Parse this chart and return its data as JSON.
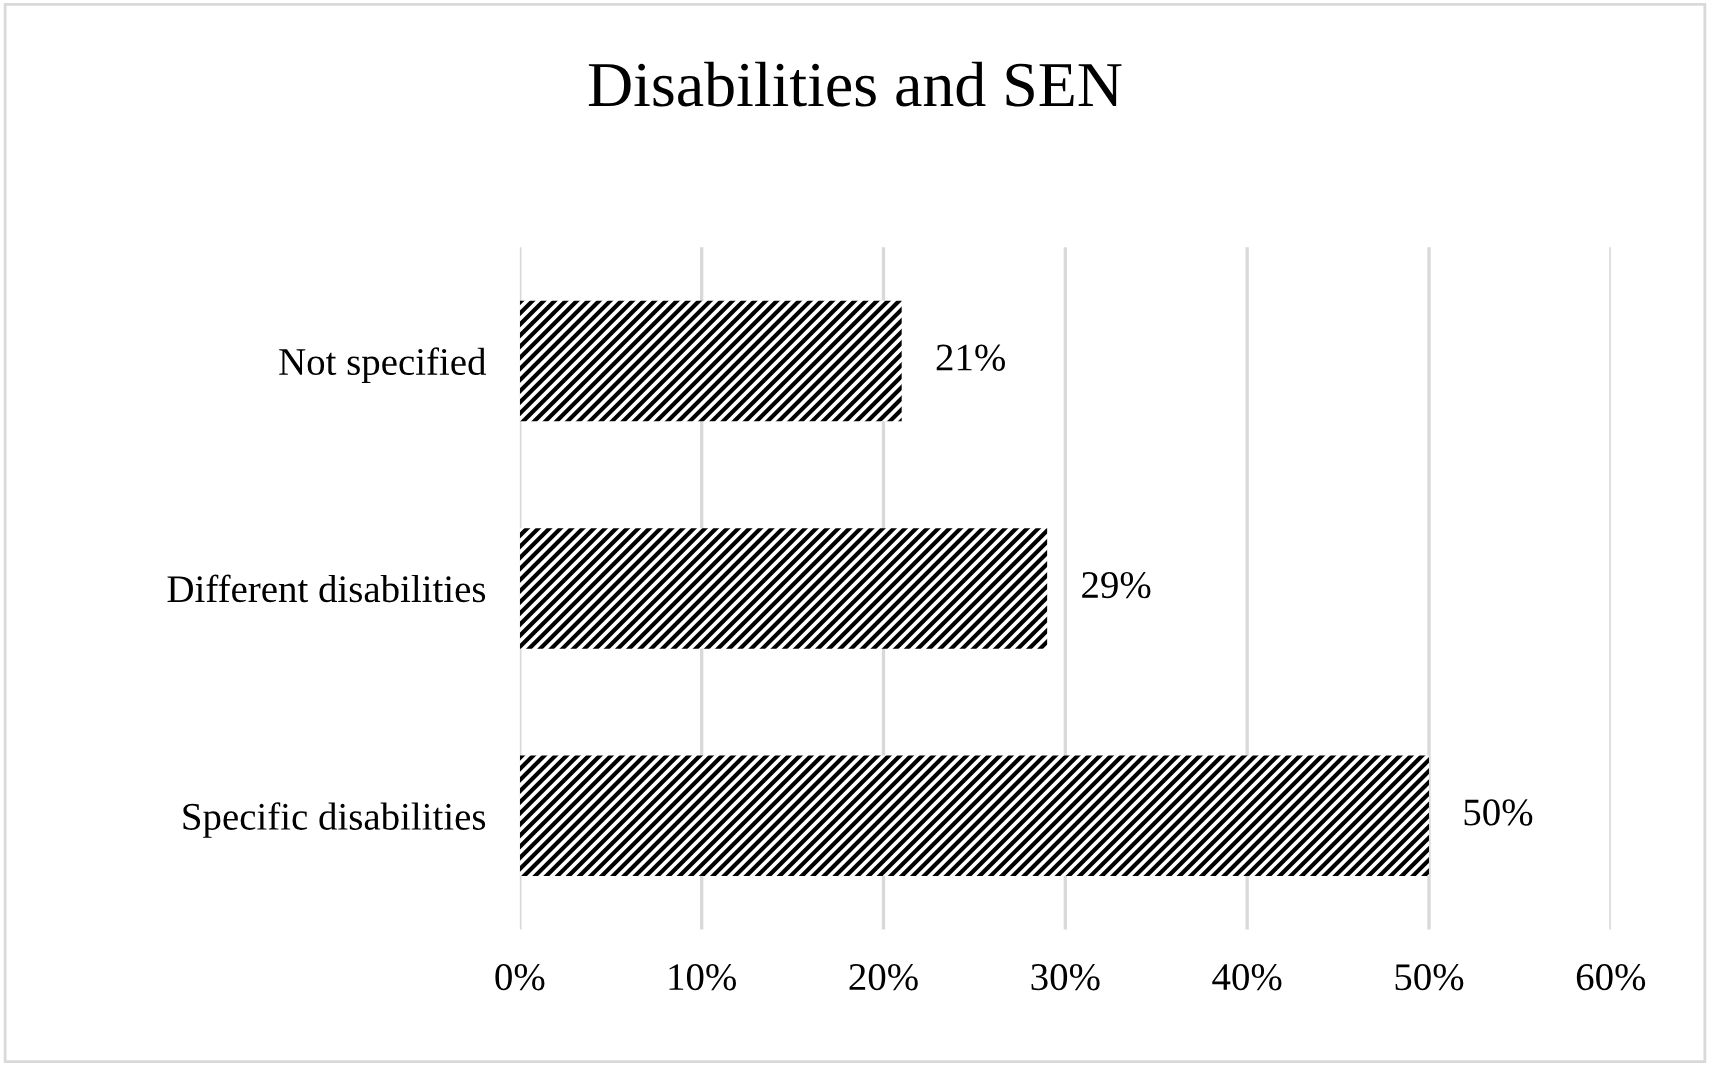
{
  "chart_data": {
    "type": "bar",
    "orientation": "horizontal",
    "title": "Disabilities and SEN",
    "categories": [
      "Not specified",
      "Different disabilities",
      "Specific disabilities"
    ],
    "values": [
      21,
      29,
      50
    ],
    "color": "#000000",
    "value_labels": [
      "21%",
      "29%",
      "50%"
    ],
    "xlim": [
      0,
      60
    ],
    "xticks": [
      {
        "value": 0,
        "label": "0%"
      },
      {
        "value": 10,
        "label": "10%"
      },
      {
        "value": 20,
        "label": "20%"
      },
      {
        "value": 30,
        "label": "30%"
      },
      {
        "value": 40,
        "label": "40%"
      },
      {
        "value": 50,
        "label": "50%"
      },
      {
        "value": 60,
        "label": "60%"
      }
    ],
    "grid": "x"
  }
}
